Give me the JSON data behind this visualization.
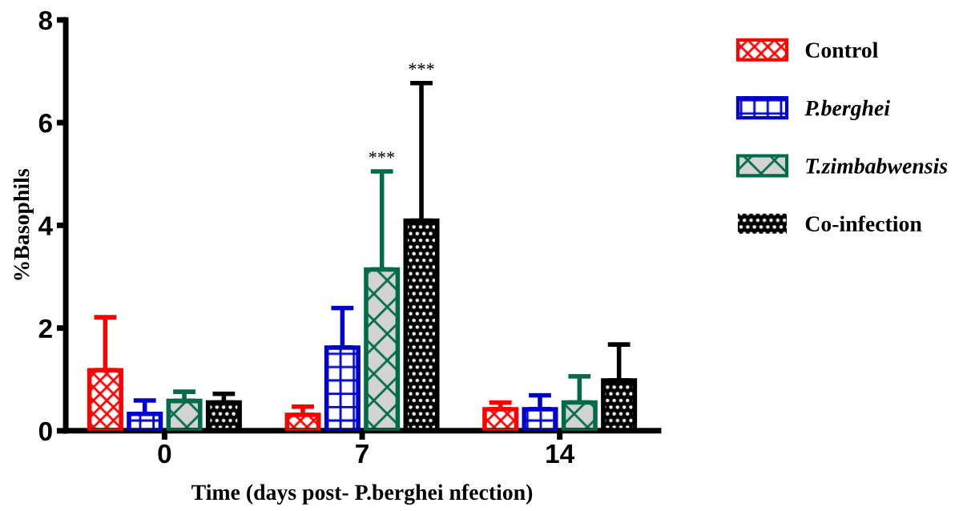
{
  "chart_data": {
    "type": "bar",
    "xlabel": "Time (days post- P.berghei nfection)",
    "ylabel": "%Basophils",
    "categories": [
      "0",
      "7",
      "14"
    ],
    "series": [
      {
        "name": "Control",
        "color": "#ff0000",
        "values": [
          1.18,
          0.31,
          0.42
        ],
        "errors": [
          [
            1.18,
            2.21
          ],
          [
            0.31,
            0.47
          ],
          [
            0.42,
            0.55
          ]
        ]
      },
      {
        "name": "P.berghei",
        "color": "#0000cc",
        "values": [
          0.33,
          1.62,
          0.42
        ],
        "errors": [
          [
            0.33,
            0.59
          ],
          [
            1.62,
            2.39
          ],
          [
            0.42,
            0.69
          ]
        ]
      },
      {
        "name": "T.zimbabwensis",
        "color": "#006b4a",
        "values": [
          0.58,
          3.14,
          0.55
        ],
        "errors": [
          [
            0.58,
            0.76
          ],
          [
            3.14,
            5.05
          ],
          [
            0.55,
            1.06
          ]
        ]
      },
      {
        "name": "Co-infection",
        "color": "#000000",
        "values": [
          0.55,
          4.09,
          0.98
        ],
        "errors": [
          [
            0.55,
            0.72
          ],
          [
            4.09,
            6.77
          ],
          [
            0.98,
            1.68
          ]
        ]
      }
    ],
    "ylim": [
      0,
      8
    ],
    "yticks": [
      0,
      2,
      4,
      6,
      8
    ],
    "grid": false,
    "legend": "right",
    "annotations": [
      "***",
      "***"
    ]
  }
}
